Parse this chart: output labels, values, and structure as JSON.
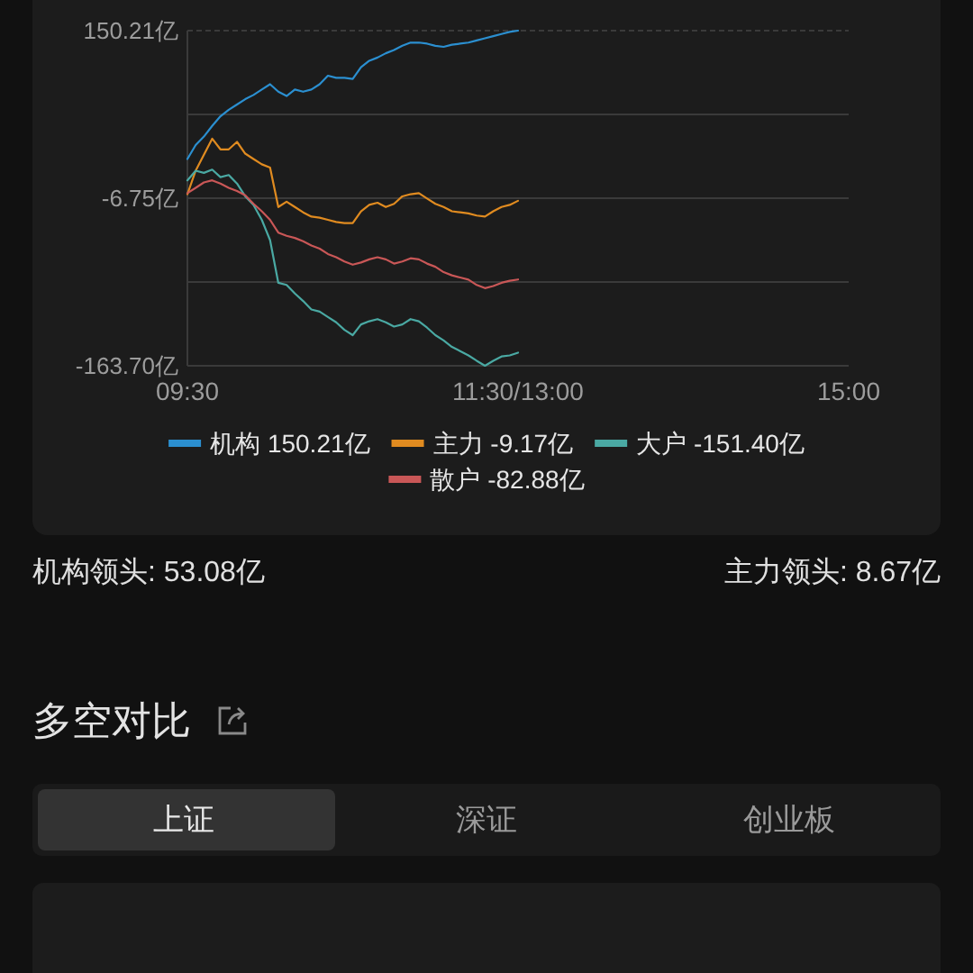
{
  "chart_data": [
    {
      "type": "line",
      "categories": [
        "09:30",
        null,
        null,
        null,
        null,
        null,
        null,
        null,
        null,
        null,
        null,
        null,
        null,
        null,
        null,
        null,
        null,
        null,
        null,
        null,
        null,
        null,
        null,
        null,
        null,
        null,
        null,
        null,
        null,
        null,
        null,
        null,
        null,
        null,
        null,
        null,
        null,
        null,
        null,
        null,
        "11:30/13:00",
        null,
        null,
        null,
        null,
        null,
        null,
        null,
        null,
        null,
        null,
        null,
        null,
        null,
        null,
        null,
        null,
        null,
        null,
        null,
        null,
        null,
        null,
        null,
        null,
        null,
        null,
        null,
        null,
        null,
        null,
        null,
        null,
        null,
        null,
        null,
        null,
        null,
        null,
        null,
        "15:00"
      ],
      "ylim": [
        -163.7,
        150.21
      ],
      "yticks": [
        {
          "value": 150.21,
          "label": "150.21亿"
        },
        {
          "value": 71.73,
          "label": null
        },
        {
          "value": -6.75,
          "label": "-6.75亿"
        },
        {
          "value": -85.22,
          "label": null
        },
        {
          "value": -163.7,
          "label": "-163.70亿"
        }
      ],
      "grid": "y",
      "legend": "bottom",
      "series": [
        {
          "name": "机构 150.21亿",
          "color": "#2b8fd0",
          "values": [
            30,
            43,
            51,
            61,
            70,
            76,
            81,
            86,
            90,
            95,
            100,
            93,
            89,
            95,
            93,
            95,
            100,
            108,
            106,
            106,
            105,
            116,
            122,
            125,
            129,
            132,
            136,
            139,
            139,
            138,
            136,
            135,
            137,
            138,
            139,
            141,
            143,
            145,
            147,
            149,
            150.21,
            null,
            null,
            null,
            null,
            null,
            null,
            null,
            null,
            null,
            null,
            null,
            null,
            null,
            null,
            null,
            null,
            null,
            null,
            null,
            null,
            null,
            null,
            null,
            null,
            null,
            null,
            null,
            null,
            null,
            null,
            null,
            null,
            null,
            null,
            null,
            null,
            null,
            null,
            null,
            null
          ]
        },
        {
          "name": "主力 -9.17亿",
          "color": "#e08b20",
          "values": [
            -3,
            19,
            34,
            49,
            39,
            39,
            46,
            35,
            30,
            25,
            22,
            -15,
            -10,
            -15,
            -20,
            -24,
            -25,
            -27,
            -29,
            -30,
            -30,
            -19,
            -13,
            -11,
            -15,
            -12,
            -5,
            -3,
            -2,
            -7,
            -12,
            -15,
            -19,
            -20,
            -21,
            -23,
            -24,
            -19,
            -15,
            -13,
            -9.17,
            null,
            null,
            null,
            null,
            null,
            null,
            null,
            null,
            null,
            null,
            null,
            null,
            null,
            null,
            null,
            null,
            null,
            null,
            null,
            null,
            null,
            null,
            null,
            null,
            null,
            null,
            null,
            null,
            null,
            null,
            null,
            null,
            null,
            null,
            null,
            null,
            null,
            null,
            null,
            null
          ]
        },
        {
          "name": "大户 -151.40亿",
          "color": "#4aa9a3",
          "values": [
            10,
            19,
            17,
            20,
            13,
            15,
            7,
            -5,
            -13,
            -27,
            -46,
            -86,
            -88,
            -96,
            -103,
            -111,
            -113,
            -118,
            -123,
            -130,
            -135,
            -125,
            -122,
            -120,
            -123,
            -127,
            -125,
            -120,
            -122,
            -128,
            -135,
            -140,
            -146,
            -150,
            -154,
            -159,
            -163.7,
            -159,
            -155,
            -154,
            -151.4,
            null,
            null,
            null,
            null,
            null,
            null,
            null,
            null,
            null,
            null,
            null,
            null,
            null,
            null,
            null,
            null,
            null,
            null,
            null,
            null,
            null,
            null,
            null,
            null,
            null,
            null,
            null,
            null,
            null,
            null,
            null,
            null,
            null,
            null,
            null,
            null,
            null,
            null,
            null,
            null
          ]
        },
        {
          "name": "散户 -82.88亿",
          "color": "#c95757",
          "values": [
            -2,
            3,
            8,
            10,
            7,
            3,
            0,
            -4,
            -12,
            -19,
            -27,
            -39,
            -42,
            -44,
            -47,
            -51,
            -54,
            -59,
            -62,
            -66,
            -69,
            -67,
            -64,
            -62,
            -64,
            -68,
            -66,
            -63,
            -64,
            -68,
            -71,
            -76,
            -79,
            -81,
            -83,
            -88,
            -91,
            -89,
            -86,
            -84,
            -82.88,
            null,
            null,
            null,
            null,
            null,
            null,
            null,
            null,
            null,
            null,
            null,
            null,
            null,
            null,
            null,
            null,
            null,
            null,
            null,
            null,
            null,
            null,
            null,
            null,
            null,
            null,
            null,
            null,
            null,
            null,
            null,
            null,
            null,
            null,
            null,
            null,
            null,
            null,
            null,
            null
          ]
        }
      ],
      "annotations": [
        "机构领头: 53.08亿",
        "主力领头: 8.67亿"
      ]
    },
    {
      "type": "other",
      "title": "多空对比",
      "annotations": [
        "上证",
        "深证",
        "创业板"
      ]
    }
  ]
}
